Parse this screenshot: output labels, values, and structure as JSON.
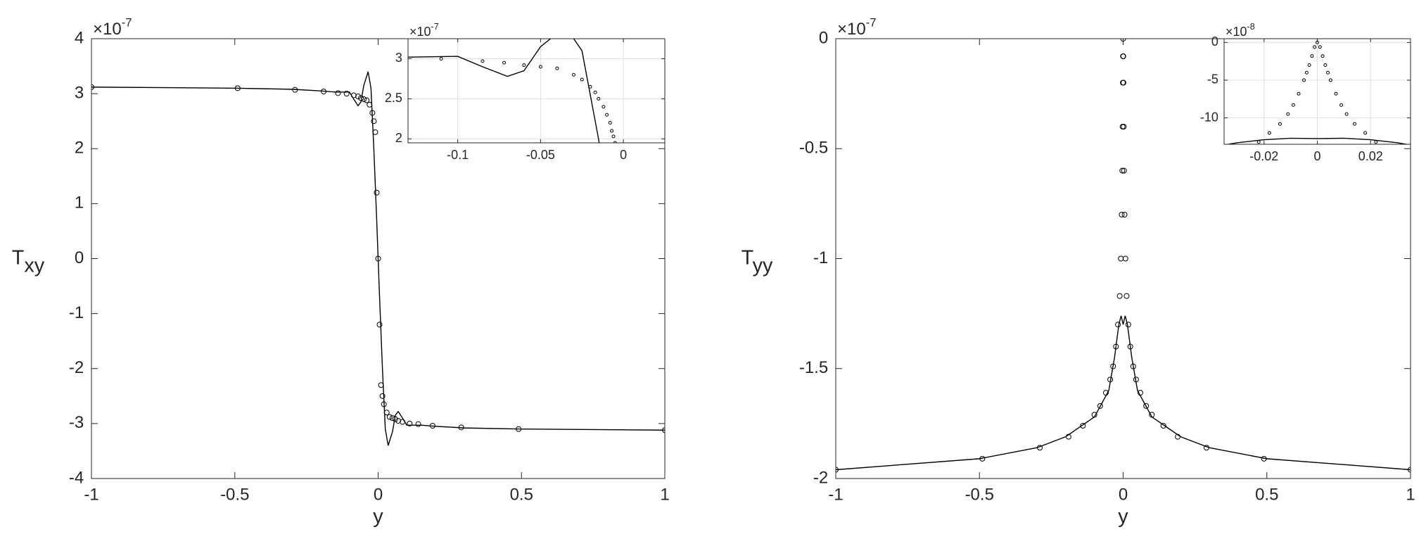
{
  "chart_data": [
    {
      "type": "line",
      "xlabel": "y",
      "ylabel": {
        "main": "T",
        "sub": "xy"
      },
      "exponent": {
        "base": "×10",
        "power": "-7"
      },
      "xlim": [
        -1,
        1
      ],
      "ylim": [
        -4,
        4
      ],
      "xticks": [
        -1,
        -0.5,
        0,
        0.5,
        1
      ],
      "yticks": [
        4,
        3,
        2,
        1,
        0,
        -1,
        -2,
        -3,
        -4
      ],
      "grid": false,
      "series": [
        {
          "style": "line",
          "color": "#000000",
          "x": [
            -1,
            -0.5,
            -0.3,
            -0.2,
            -0.15,
            -0.1,
            -0.085,
            -0.07,
            -0.06,
            -0.05,
            -0.035,
            -0.025,
            -0.015,
            -0.005,
            0,
            0.005,
            0.015,
            0.025,
            0.035,
            0.05,
            0.06,
            0.07,
            0.085,
            0.1,
            0.15,
            0.2,
            0.3,
            0.5,
            1
          ],
          "values": [
            3.12,
            3.1,
            3.08,
            3.05,
            3.03,
            3.03,
            2.9,
            2.78,
            2.85,
            3.15,
            3.4,
            3.1,
            2.0,
            0.7,
            0,
            -0.7,
            -2.0,
            -3.1,
            -3.4,
            -3.15,
            -2.85,
            -2.78,
            -2.9,
            -3.03,
            -3.03,
            -3.05,
            -3.08,
            -3.1,
            -3.12
          ]
        },
        {
          "style": "markers",
          "color": "#000000",
          "x": [
            -1,
            -0.49,
            -0.29,
            -0.19,
            -0.14,
            -0.11,
            -0.085,
            -0.07,
            -0.06,
            -0.05,
            -0.04,
            -0.03,
            -0.02,
            -0.015,
            -0.01,
            -0.005,
            0,
            0.005,
            0.01,
            0.015,
            0.02,
            0.03,
            0.04,
            0.05,
            0.06,
            0.07,
            0.085,
            0.11,
            0.14,
            0.19,
            0.29,
            0.49,
            1
          ],
          "values": [
            3.12,
            3.1,
            3.07,
            3.04,
            3.01,
            3.0,
            2.97,
            2.95,
            2.92,
            2.9,
            2.88,
            2.8,
            2.65,
            2.5,
            2.3,
            1.2,
            0,
            -1.2,
            -2.3,
            -2.5,
            -2.65,
            -2.8,
            -2.88,
            -2.9,
            -2.92,
            -2.95,
            -2.97,
            -3.0,
            -3.01,
            -3.04,
            -3.07,
            -3.1,
            -3.12
          ]
        }
      ]
    },
    {
      "type": "line",
      "xlabel": "y",
      "ylabel": {
        "main": "T",
        "sub": "yy"
      },
      "exponent": {
        "base": "×10",
        "power": "-7"
      },
      "xlim": [
        -1,
        1
      ],
      "ylim": [
        -2,
        0
      ],
      "xticks": [
        -1,
        -0.5,
        0,
        0.5,
        1
      ],
      "yticks": [
        0,
        -0.5,
        -1,
        -1.5,
        -2
      ],
      "grid": false,
      "series": [
        {
          "style": "line",
          "color": "#000000",
          "x": [
            -1,
            -0.5,
            -0.3,
            -0.2,
            -0.1,
            -0.05,
            -0.03,
            -0.015,
            -0.007,
            0,
            0.007,
            0.015,
            0.03,
            0.05,
            0.1,
            0.2,
            0.3,
            0.5,
            1
          ],
          "values": [
            -1.96,
            -1.91,
            -1.86,
            -1.81,
            -1.72,
            -1.6,
            -1.45,
            -1.3,
            -1.26,
            -1.3,
            -1.26,
            -1.3,
            -1.45,
            -1.6,
            -1.72,
            -1.81,
            -1.86,
            -1.91,
            -1.96
          ]
        },
        {
          "style": "markers",
          "color": "#000000",
          "x": [
            -1,
            -0.49,
            -0.29,
            -0.19,
            -0.14,
            -0.1,
            -0.08,
            -0.06,
            -0.045,
            -0.035,
            -0.025,
            -0.018,
            -0.012,
            -0.008,
            -0.005,
            -0.003,
            -0.002,
            -0.001,
            -0.0005,
            0,
            0.0005,
            0.001,
            0.002,
            0.003,
            0.005,
            0.008,
            0.012,
            0.018,
            0.025,
            0.035,
            0.045,
            0.06,
            0.08,
            0.1,
            0.14,
            0.19,
            0.29,
            0.49,
            1
          ],
          "values": [
            -1.96,
            -1.91,
            -1.86,
            -1.81,
            -1.76,
            -1.71,
            -1.67,
            -1.61,
            -1.55,
            -1.49,
            -1.4,
            -1.3,
            -1.17,
            -1.0,
            -0.8,
            -0.6,
            -0.4,
            -0.2,
            -0.08,
            0,
            -0.08,
            -0.2,
            -0.4,
            -0.6,
            -0.8,
            -1.0,
            -1.17,
            -1.3,
            -1.4,
            -1.49,
            -1.55,
            -1.61,
            -1.67,
            -1.71,
            -1.76,
            -1.81,
            -1.86,
            -1.91,
            -1.96
          ]
        }
      ]
    },
    {
      "type": "line",
      "exponent": {
        "base": "×10",
        "power": "-7"
      },
      "xlim": [
        -0.13,
        0.025
      ],
      "ylim": [
        1.95,
        3.25
      ],
      "xticks": [
        -0.1,
        -0.05,
        0
      ],
      "yticks": [
        2,
        2.5,
        3
      ],
      "grid": true,
      "series": [
        {
          "style": "line",
          "color": "#000000",
          "x": [
            -0.13,
            -0.1,
            -0.085,
            -0.07,
            -0.06,
            -0.05,
            -0.035,
            -0.025,
            -0.015,
            -0.005
          ],
          "values": [
            3.02,
            3.03,
            2.9,
            2.78,
            2.85,
            3.15,
            3.4,
            3.1,
            2.0,
            0.7
          ]
        },
        {
          "style": "markers",
          "color": "#000000",
          "x": [
            -0.11,
            -0.085,
            -0.072,
            -0.06,
            -0.05,
            -0.04,
            -0.03,
            -0.025,
            -0.02,
            -0.017,
            -0.015,
            -0.012,
            -0.01,
            -0.008,
            -0.007,
            -0.006,
            -0.005
          ],
          "values": [
            3.0,
            2.97,
            2.95,
            2.92,
            2.9,
            2.88,
            2.8,
            2.74,
            2.65,
            2.58,
            2.5,
            2.4,
            2.3,
            2.2,
            2.1,
            2.03,
            1.95
          ]
        }
      ]
    },
    {
      "type": "line",
      "exponent": {
        "base": "×10",
        "power": "-8"
      },
      "xlim": [
        -0.035,
        0.035
      ],
      "ylim": [
        -13.5,
        0.5
      ],
      "xticks": [
        -0.02,
        0,
        0.02
      ],
      "yticks": [
        0,
        -5,
        -10
      ],
      "grid": true,
      "series": [
        {
          "style": "line",
          "color": "#000000",
          "x": [
            -0.035,
            -0.03,
            -0.02,
            -0.01,
            0,
            0.01,
            0.02,
            0.03,
            0.035
          ],
          "values": [
            -13.6,
            -13.3,
            -12.9,
            -12.7,
            -12.75,
            -12.7,
            -12.9,
            -13.3,
            -13.6
          ]
        },
        {
          "style": "markers",
          "color": "#000000",
          "x": [
            -0.022,
            -0.018,
            -0.014,
            -0.011,
            -0.009,
            -0.007,
            -0.005,
            -0.004,
            -0.003,
            -0.002,
            -0.001,
            0,
            0.001,
            0.002,
            0.003,
            0.004,
            0.005,
            0.007,
            0.009,
            0.011,
            0.014,
            0.018,
            0.022
          ],
          "values": [
            -13.2,
            -12,
            -10.8,
            -9.5,
            -8.3,
            -6.8,
            -5,
            -4,
            -3,
            -1.8,
            -0.6,
            0,
            -0.6,
            -1.8,
            -3,
            -4,
            -5,
            -6.8,
            -8.3,
            -9.5,
            -10.8,
            -12,
            -13.2
          ]
        }
      ]
    }
  ]
}
